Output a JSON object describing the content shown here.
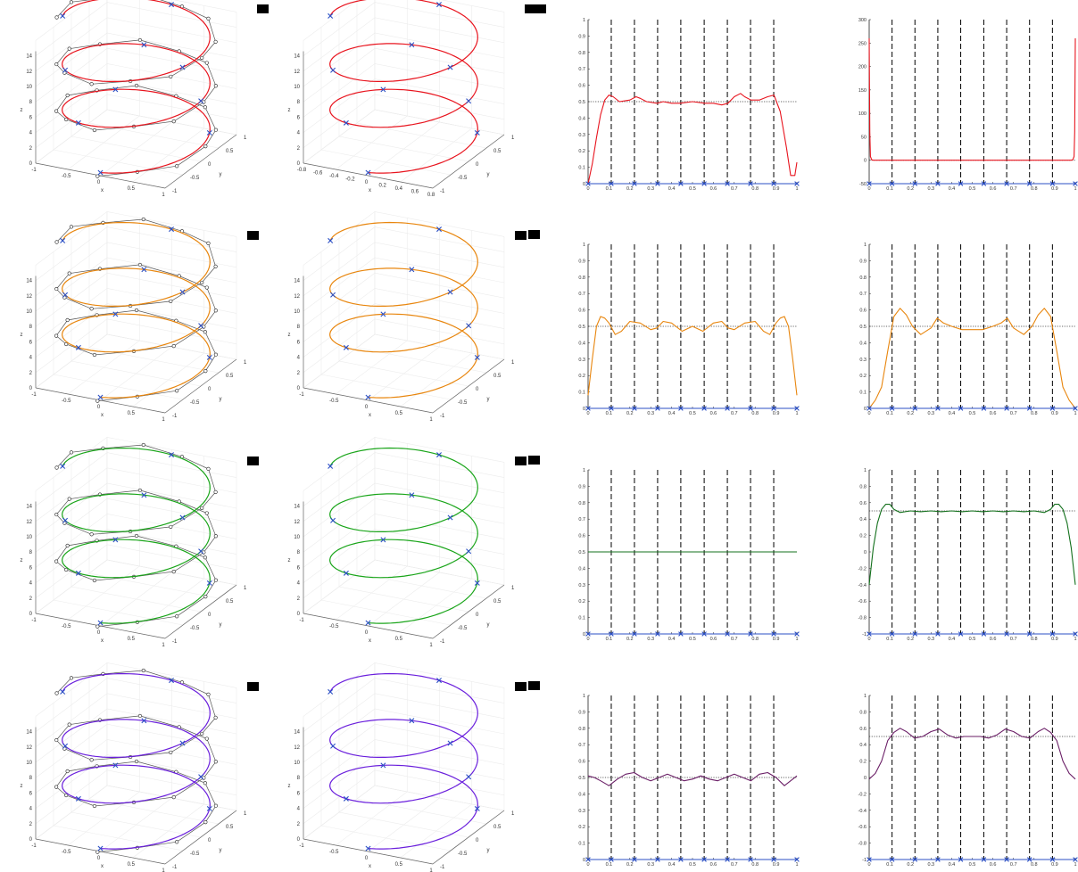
{
  "colors": {
    "red": "#e8141e",
    "orange": "#e8860e",
    "green": "#1aa51a",
    "darkgreen": "#13701c",
    "purple": "#6a1fdc",
    "darkpurple": "#6a1e66",
    "knot": "#2b4fc4",
    "control": "#000000",
    "dashed": "#000000"
  },
  "chart_data": [
    {
      "type": "line",
      "panel": "helix-3d",
      "row": 1,
      "col": 1,
      "axes3d": {
        "xlabel": "x",
        "ylabel": "y",
        "zlabel": "z",
        "xticks": [
          "-1",
          "-0.5",
          "0",
          "0.5",
          "1"
        ],
        "yticks": [
          "-1",
          "-0.5",
          "0",
          "0.5",
          "1"
        ],
        "zticks": [
          "0",
          "2",
          "4",
          "6",
          "8",
          "10",
          "12",
          "14"
        ]
      },
      "show_control_polygon": true,
      "color": "red"
    },
    {
      "type": "line",
      "panel": "helix-3d",
      "row": 1,
      "col": 2,
      "axes3d": {
        "xlabel": "x",
        "ylabel": "y",
        "zlabel": "z",
        "xticks": [
          "-0.8",
          "-0.6",
          "-0.4",
          "-0.2",
          "0",
          "0.2",
          "0.4",
          "0.6",
          "0.8"
        ],
        "yticks": [
          "-1",
          "-0.5",
          "0",
          "0.5",
          "1"
        ],
        "zticks": [
          "0",
          "2",
          "4",
          "6",
          "8",
          "10",
          "12",
          "14"
        ]
      },
      "show_control_polygon": false,
      "color": "red"
    },
    {
      "type": "line",
      "panel": "profile",
      "row": 1,
      "col": 3,
      "xlim": [
        0,
        1
      ],
      "ylim": [
        0,
        1
      ],
      "xticks": [
        "0",
        "0.1",
        "0.2",
        "0.3",
        "0.4",
        "0.5",
        "0.6",
        "0.7",
        "0.8",
        "0.9",
        "1"
      ],
      "yticks": [
        "0",
        "0.1",
        "0.2",
        "0.3",
        "0.4",
        "0.5",
        "0.6",
        "0.7",
        "0.8",
        "0.9",
        "1"
      ],
      "reference": 0.5,
      "knots": [
        0,
        0.111,
        0.222,
        0.333,
        0.444,
        0.556,
        0.667,
        0.778,
        0.889,
        1
      ],
      "x": [
        0,
        0.02,
        0.04,
        0.06,
        0.08,
        0.1,
        0.12,
        0.15,
        0.2,
        0.23,
        0.25,
        0.28,
        0.33,
        0.36,
        0.4,
        0.44,
        0.5,
        0.56,
        0.6,
        0.64,
        0.67,
        0.7,
        0.73,
        0.75,
        0.78,
        0.82,
        0.86,
        0.89,
        0.92,
        0.95,
        0.97,
        0.99,
        1
      ],
      "y": [
        0,
        0.12,
        0.28,
        0.42,
        0.51,
        0.54,
        0.53,
        0.5,
        0.51,
        0.53,
        0.52,
        0.5,
        0.49,
        0.5,
        0.49,
        0.49,
        0.5,
        0.49,
        0.49,
        0.48,
        0.49,
        0.53,
        0.55,
        0.53,
        0.51,
        0.51,
        0.53,
        0.54,
        0.44,
        0.22,
        0.05,
        0.05,
        0.13
      ],
      "color": "red"
    },
    {
      "type": "line",
      "panel": "profile",
      "row": 1,
      "col": 4,
      "xlim": [
        0,
        1
      ],
      "ylim": [
        -50,
        300
      ],
      "xticks": [
        "0",
        "0.1",
        "0.2",
        "0.3",
        "0.4",
        "0.5",
        "0.6",
        "0.7",
        "0.8",
        "0.9",
        "1"
      ],
      "yticks": [
        "-50",
        "0",
        "50",
        "100",
        "150",
        "200",
        "250",
        "300"
      ],
      "reference": 0,
      "knots": [
        0,
        0.111,
        0.222,
        0.333,
        0.444,
        0.556,
        0.667,
        0.778,
        0.889,
        1
      ],
      "x": [
        0,
        0.003,
        0.006,
        0.012,
        0.02,
        0.1,
        0.5,
        0.9,
        0.98,
        0.988,
        0.994,
        0.997,
        1
      ],
      "y": [
        260,
        60,
        8,
        1,
        0,
        0,
        0,
        0,
        0,
        1,
        8,
        60,
        260
      ],
      "color": "red"
    },
    {
      "type": "line",
      "panel": "helix-3d",
      "row": 2,
      "col": 1,
      "axes3d": {
        "xlabel": "x",
        "ylabel": "y",
        "zlabel": "z",
        "xticks": [
          "-1",
          "-0.5",
          "0",
          "0.5",
          "1"
        ],
        "yticks": [
          "-1",
          "-0.5",
          "0",
          "0.5",
          "1"
        ],
        "zticks": [
          "0",
          "2",
          "4",
          "6",
          "8",
          "10",
          "12",
          "14"
        ]
      },
      "show_control_polygon": true,
      "color": "orange"
    },
    {
      "type": "line",
      "panel": "helix-3d",
      "row": 2,
      "col": 2,
      "axes3d": {
        "xlabel": "x",
        "ylabel": "y",
        "zlabel": "z",
        "xticks": [
          "-1",
          "-0.5",
          "0",
          "0.5",
          "1"
        ],
        "yticks": [
          "-1",
          "-0.5",
          "0",
          "0.5",
          "1"
        ],
        "zticks": [
          "0",
          "2",
          "4",
          "6",
          "8",
          "10",
          "12",
          "14"
        ]
      },
      "show_control_polygon": false,
      "color": "orange"
    },
    {
      "type": "line",
      "panel": "profile",
      "row": 2,
      "col": 3,
      "xlim": [
        0,
        1
      ],
      "ylim": [
        0,
        1
      ],
      "xticks": [
        "0",
        "0.1",
        "0.2",
        "0.3",
        "0.4",
        "0.5",
        "0.6",
        "0.7",
        "0.8",
        "0.9",
        "1"
      ],
      "yticks": [
        "0",
        "0.1",
        "0.2",
        "0.3",
        "0.4",
        "0.5",
        "0.6",
        "0.7",
        "0.8",
        "0.9",
        "1"
      ],
      "reference": 0.5,
      "knots": [
        0,
        0.111,
        0.222,
        0.333,
        0.444,
        0.556,
        0.667,
        0.778,
        0.889,
        1
      ],
      "x": [
        0,
        0.02,
        0.04,
        0.06,
        0.08,
        0.1,
        0.13,
        0.16,
        0.2,
        0.25,
        0.3,
        0.33,
        0.36,
        0.4,
        0.45,
        0.5,
        0.55,
        0.6,
        0.64,
        0.67,
        0.7,
        0.75,
        0.8,
        0.84,
        0.87,
        0.9,
        0.92,
        0.94,
        0.96,
        0.98,
        1
      ],
      "y": [
        0.08,
        0.3,
        0.5,
        0.56,
        0.55,
        0.52,
        0.45,
        0.47,
        0.53,
        0.52,
        0.48,
        0.49,
        0.53,
        0.52,
        0.47,
        0.5,
        0.47,
        0.52,
        0.53,
        0.49,
        0.48,
        0.52,
        0.53,
        0.47,
        0.45,
        0.52,
        0.55,
        0.56,
        0.5,
        0.3,
        0.08
      ],
      "color": "orange"
    },
    {
      "type": "line",
      "panel": "profile",
      "row": 2,
      "col": 4,
      "xlim": [
        0,
        1
      ],
      "ylim": [
        0,
        1
      ],
      "xticks": [
        "0",
        "0.1",
        "0.2",
        "0.3",
        "0.4",
        "0.5",
        "0.6",
        "0.7",
        "0.8",
        "0.9",
        "1"
      ],
      "yticks": [
        "0",
        "0.1",
        "0.2",
        "0.3",
        "0.4",
        "0.5",
        "0.6",
        "0.7",
        "0.8",
        "0.9",
        "1"
      ],
      "reference": 0.5,
      "knots": [
        0,
        0.111,
        0.222,
        0.333,
        0.444,
        0.556,
        0.667,
        0.778,
        0.889,
        1
      ],
      "x": [
        0,
        0.03,
        0.06,
        0.09,
        0.12,
        0.15,
        0.18,
        0.21,
        0.25,
        0.3,
        0.33,
        0.36,
        0.4,
        0.45,
        0.5,
        0.55,
        0.6,
        0.64,
        0.67,
        0.7,
        0.75,
        0.79,
        0.82,
        0.85,
        0.88,
        0.91,
        0.94,
        0.97,
        1
      ],
      "y": [
        0,
        0.05,
        0.13,
        0.35,
        0.56,
        0.61,
        0.57,
        0.5,
        0.45,
        0.49,
        0.55,
        0.52,
        0.5,
        0.48,
        0.48,
        0.48,
        0.5,
        0.52,
        0.55,
        0.49,
        0.45,
        0.5,
        0.57,
        0.61,
        0.56,
        0.35,
        0.13,
        0.05,
        0
      ],
      "color": "orange"
    },
    {
      "type": "line",
      "panel": "helix-3d",
      "row": 3,
      "col": 1,
      "axes3d": {
        "xlabel": "x",
        "ylabel": "y",
        "zlabel": "z",
        "xticks": [
          "-1",
          "-0.5",
          "0",
          "0.5",
          "1"
        ],
        "yticks": [
          "-1",
          "-0.5",
          "0",
          "0.5",
          "1"
        ],
        "zticks": [
          "0",
          "2",
          "4",
          "6",
          "8",
          "10",
          "12",
          "14"
        ]
      },
      "show_control_polygon": true,
      "color": "green"
    },
    {
      "type": "line",
      "panel": "helix-3d",
      "row": 3,
      "col": 2,
      "axes3d": {
        "xlabel": "x",
        "ylabel": "y",
        "zlabel": "z",
        "xticks": [
          "-1",
          "-0.5",
          "0",
          "0.5",
          "1"
        ],
        "yticks": [
          "-1",
          "-0.5",
          "0",
          "0.5",
          "1"
        ],
        "zticks": [
          "0",
          "2",
          "4",
          "6",
          "8",
          "10",
          "12",
          "14"
        ]
      },
      "show_control_polygon": false,
      "color": "green"
    },
    {
      "type": "line",
      "panel": "profile",
      "row": 3,
      "col": 3,
      "xlim": [
        0,
        1
      ],
      "ylim": [
        0,
        1
      ],
      "xticks": [
        "0",
        "0.1",
        "0.2",
        "0.3",
        "0.4",
        "0.5",
        "0.6",
        "0.7",
        "0.8",
        "0.9",
        "1"
      ],
      "yticks": [
        "0",
        "0.1",
        "0.2",
        "0.3",
        "0.4",
        "0.5",
        "0.6",
        "0.7",
        "0.8",
        "0.9",
        "1"
      ],
      "reference": 0.5,
      "knots": [
        0,
        0.111,
        0.222,
        0.333,
        0.444,
        0.556,
        0.667,
        0.778,
        0.889,
        1
      ],
      "x": [
        0,
        0.25,
        0.5,
        0.75,
        1
      ],
      "y": [
        0.5,
        0.5,
        0.5,
        0.5,
        0.5
      ],
      "color": "darkgreen"
    },
    {
      "type": "line",
      "panel": "profile",
      "row": 3,
      "col": 4,
      "xlim": [
        0,
        1
      ],
      "ylim": [
        -1,
        1
      ],
      "xticks": [
        "0",
        "0.1",
        "0.2",
        "0.3",
        "0.4",
        "0.5",
        "0.6",
        "0.7",
        "0.8",
        "0.9",
        "1"
      ],
      "yticks": [
        "-1",
        "-0.8",
        "-0.6",
        "-0.4",
        "-0.2",
        "0",
        "0.2",
        "0.4",
        "0.6",
        "0.8",
        "1"
      ],
      "reference": 0.5,
      "knots": [
        0,
        0.111,
        0.222,
        0.333,
        0.444,
        0.556,
        0.667,
        0.778,
        0.889,
        1
      ],
      "x": [
        0,
        0.02,
        0.04,
        0.06,
        0.08,
        0.1,
        0.12,
        0.15,
        0.2,
        0.25,
        0.3,
        0.35,
        0.4,
        0.45,
        0.5,
        0.55,
        0.6,
        0.65,
        0.7,
        0.75,
        0.8,
        0.85,
        0.88,
        0.9,
        0.92,
        0.94,
        0.96,
        0.98,
        1
      ],
      "y": [
        -0.4,
        0.05,
        0.35,
        0.52,
        0.58,
        0.58,
        0.52,
        0.48,
        0.5,
        0.49,
        0.5,
        0.49,
        0.5,
        0.49,
        0.5,
        0.49,
        0.5,
        0.49,
        0.5,
        0.49,
        0.5,
        0.48,
        0.52,
        0.58,
        0.58,
        0.52,
        0.35,
        0.05,
        -0.4
      ],
      "color": "darkgreen"
    },
    {
      "type": "line",
      "panel": "helix-3d",
      "row": 4,
      "col": 1,
      "axes3d": {
        "xlabel": "x",
        "ylabel": "y",
        "zlabel": "z",
        "xticks": [
          "-1",
          "-0.5",
          "0",
          "0.5",
          "1"
        ],
        "yticks": [
          "-1",
          "-0.5",
          "0",
          "0.5",
          "1"
        ],
        "zticks": [
          "0",
          "2",
          "4",
          "6",
          "8",
          "10",
          "12",
          "14"
        ]
      },
      "show_control_polygon": true,
      "color": "purple"
    },
    {
      "type": "line",
      "panel": "helix-3d",
      "row": 4,
      "col": 2,
      "axes3d": {
        "xlabel": "x",
        "ylabel": "y",
        "zlabel": "z",
        "xticks": [
          "-1",
          "-0.5",
          "0",
          "0.5",
          "1"
        ],
        "yticks": [
          "-1",
          "-0.5",
          "0",
          "0.5",
          "1"
        ],
        "zticks": [
          "0",
          "2",
          "4",
          "6",
          "8",
          "10",
          "12",
          "14"
        ]
      },
      "show_control_polygon": false,
      "color": "purple"
    },
    {
      "type": "line",
      "panel": "profile",
      "row": 4,
      "col": 3,
      "xlim": [
        0,
        1
      ],
      "ylim": [
        0,
        1
      ],
      "xticks": [
        "0",
        "0.1",
        "0.2",
        "0.3",
        "0.4",
        "0.5",
        "0.6",
        "0.7",
        "0.8",
        "0.9",
        "1"
      ],
      "yticks": [
        "0",
        "0.1",
        "0.2",
        "0.3",
        "0.4",
        "0.5",
        "0.6",
        "0.7",
        "0.8",
        "0.9",
        "1"
      ],
      "reference": 0.5,
      "knots": [
        0,
        0.111,
        0.222,
        0.333,
        0.444,
        0.556,
        0.667,
        0.778,
        0.889,
        1
      ],
      "x": [
        0,
        0.03,
        0.06,
        0.1,
        0.14,
        0.18,
        0.22,
        0.26,
        0.3,
        0.34,
        0.38,
        0.42,
        0.46,
        0.5,
        0.54,
        0.58,
        0.62,
        0.66,
        0.7,
        0.74,
        0.78,
        0.82,
        0.86,
        0.9,
        0.94,
        0.97,
        1
      ],
      "y": [
        0.51,
        0.5,
        0.48,
        0.45,
        0.49,
        0.52,
        0.53,
        0.5,
        0.48,
        0.5,
        0.52,
        0.5,
        0.48,
        0.49,
        0.51,
        0.49,
        0.48,
        0.5,
        0.52,
        0.5,
        0.48,
        0.52,
        0.53,
        0.5,
        0.45,
        0.48,
        0.51
      ],
      "color": "darkpurple"
    },
    {
      "type": "line",
      "panel": "profile",
      "row": 4,
      "col": 4,
      "xlim": [
        0,
        1
      ],
      "ylim": [
        -1,
        1
      ],
      "xticks": [
        "0",
        "0.1",
        "0.2",
        "0.3",
        "0.4",
        "0.5",
        "0.6",
        "0.7",
        "0.8",
        "0.9",
        "1"
      ],
      "yticks": [
        "-1",
        "-0.8",
        "-0.6",
        "-0.4",
        "-0.2",
        "0",
        "0.2",
        "0.4",
        "0.6",
        "0.8",
        "1"
      ],
      "reference": 0.5,
      "knots": [
        0,
        0.111,
        0.222,
        0.333,
        0.444,
        0.556,
        0.667,
        0.778,
        0.889,
        1
      ],
      "x": [
        0,
        0.03,
        0.06,
        0.09,
        0.12,
        0.15,
        0.18,
        0.22,
        0.26,
        0.3,
        0.34,
        0.38,
        0.42,
        0.46,
        0.5,
        0.54,
        0.58,
        0.62,
        0.66,
        0.7,
        0.74,
        0.78,
        0.82,
        0.85,
        0.88,
        0.91,
        0.94,
        0.97,
        1
      ],
      "y": [
        -0.02,
        0.05,
        0.2,
        0.45,
        0.55,
        0.6,
        0.56,
        0.48,
        0.5,
        0.56,
        0.59,
        0.52,
        0.48,
        0.5,
        0.5,
        0.5,
        0.48,
        0.52,
        0.59,
        0.56,
        0.5,
        0.48,
        0.56,
        0.6,
        0.55,
        0.45,
        0.2,
        0.05,
        -0.02
      ],
      "color": "darkpurple"
    }
  ]
}
